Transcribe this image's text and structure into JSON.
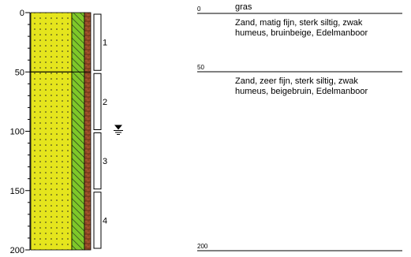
{
  "depth_axis": {
    "ticks": [
      0,
      50,
      100,
      150,
      200
    ],
    "range": [
      0,
      200
    ],
    "minor_step": 10
  },
  "borehole": {
    "layers": [
      {
        "top": 0,
        "bottom": 50,
        "color": "#e5e51d",
        "pattern": "dots"
      },
      {
        "top": 50,
        "bottom": 200,
        "color": "#e5e51d",
        "pattern": "dots"
      }
    ],
    "humus_color": "#7ec829",
    "peat_color": "#a0522d",
    "groundwater_depth": 98,
    "groundwater_icon": "groundwater-level-icon",
    "samples": [
      {
        "label": "1",
        "top": 0,
        "bottom": 50
      },
      {
        "label": "2",
        "top": 50,
        "bottom": 100
      },
      {
        "label": "3",
        "top": 100,
        "bottom": 150
      },
      {
        "label": "4",
        "top": 150,
        "bottom": 200
      }
    ]
  },
  "description": {
    "boundaries": [
      {
        "depth_label": "0",
        "text": "gras"
      },
      {
        "depth_label": "50",
        "text": ""
      },
      {
        "depth_label": "200",
        "text": ""
      }
    ],
    "layers": [
      {
        "line1": "Zand, matig fijn, sterk siltig, zwak",
        "line2": "humeus, bruinbeige, Edelmanboor"
      },
      {
        "line1": "Zand, zeer fijn, sterk siltig, zwak",
        "line2": "humeus, beigebruin, Edelmanboor"
      }
    ]
  }
}
